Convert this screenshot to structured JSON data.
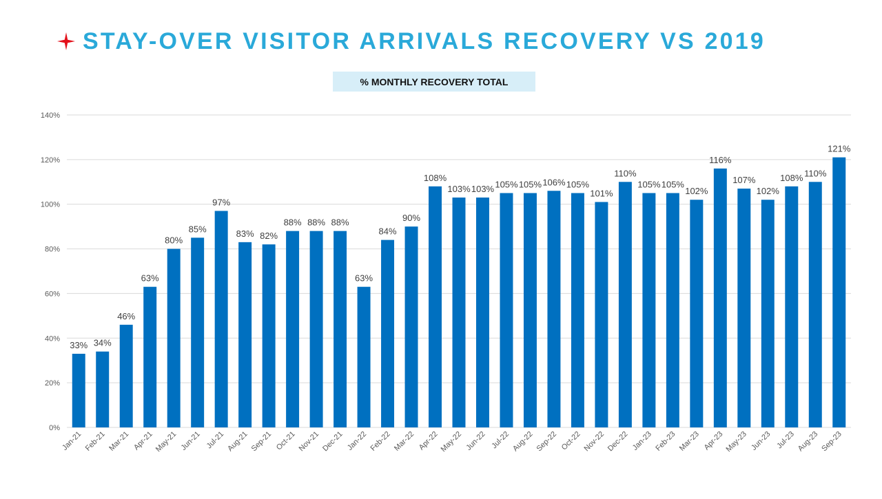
{
  "slide": {
    "title": "STAY-OVER VISITOR ARRIVALS RECOVERY VS 2019",
    "title_icon": "red-star-icon",
    "subtitle": "% MONTHLY RECOVERY TOTAL"
  },
  "colors": {
    "brand": "#2aa9d9",
    "star": "#e3101a",
    "bar": "#0070c0",
    "subtitle_bg": "#d7eef8",
    "grid": "#d9d9d9"
  },
  "chart_data": {
    "type": "bar",
    "title": "% MONTHLY RECOVERY TOTAL",
    "xlabel": "",
    "ylabel": "",
    "ylim": [
      0,
      140
    ],
    "yticks": [
      0,
      20,
      40,
      60,
      80,
      100,
      120,
      140
    ],
    "ytick_labels": [
      "0%",
      "20%",
      "40%",
      "60%",
      "80%",
      "100%",
      "120%",
      "140%"
    ],
    "grid": true,
    "legend": "none",
    "categories": [
      "Jan-21",
      "Feb-21",
      "Mar-21",
      "Apr-21",
      "May-21",
      "Jun-21",
      "Jul-21",
      "Aug-21",
      "Sep-21",
      "Oct-21",
      "Nov-21",
      "Dec-21",
      "Jan-22",
      "Feb-22",
      "Mar-22",
      "Apr-22",
      "May-22",
      "Jun-22",
      "Jul-22",
      "Aug-22",
      "Sep-22",
      "Oct-22",
      "Nov-22",
      "Dec-22",
      "Jan-23",
      "Feb-23",
      "Mar-23",
      "Apr-23",
      "May-23",
      "Jun-23",
      "Jul-23",
      "Aug-23",
      "Sep-23"
    ],
    "values": [
      33,
      34,
      46,
      63,
      80,
      85,
      97,
      83,
      82,
      88,
      88,
      88,
      63,
      84,
      90,
      108,
      103,
      103,
      105,
      105,
      106,
      105,
      101,
      110,
      105,
      105,
      102,
      116,
      107,
      102,
      108,
      110,
      121
    ],
    "data_labels": [
      "33%",
      "34%",
      "46%",
      "63%",
      "80%",
      "85%",
      "97%",
      "83%",
      "82%",
      "88%",
      "88%",
      "88%",
      "63%",
      "84%",
      "90%",
      "108%",
      "103%",
      "103%",
      "105%",
      "105%",
      "106%",
      "105%",
      "101%",
      "110%",
      "105%",
      "105%",
      "102%",
      "116%",
      "107%",
      "102%",
      "108%",
      "110%",
      "121%"
    ]
  }
}
